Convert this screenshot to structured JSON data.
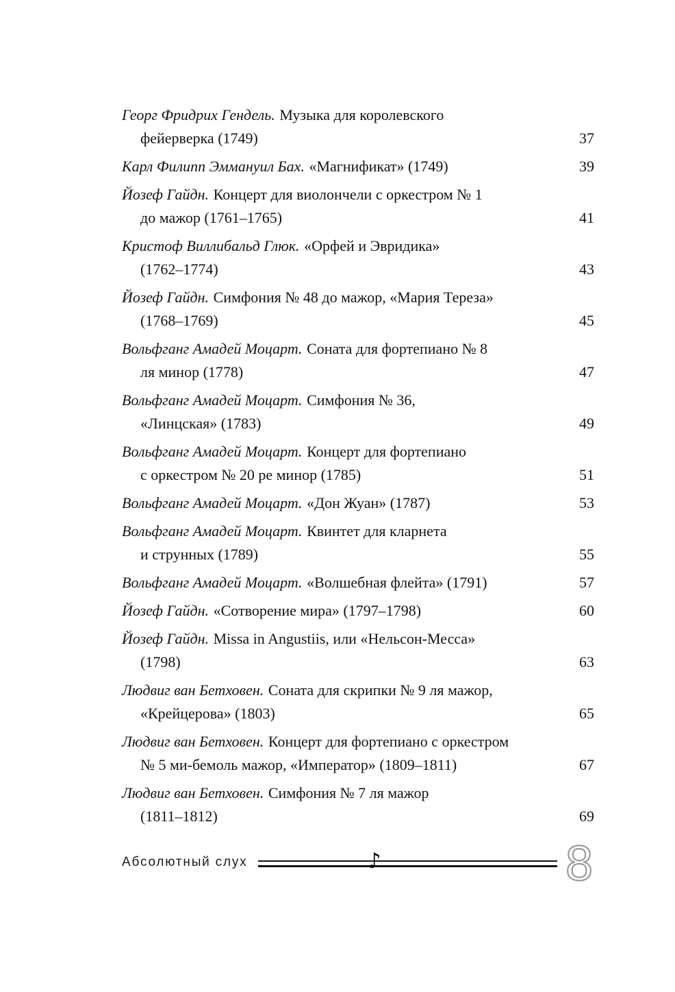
{
  "toc": {
    "entries": [
      {
        "author": "Георг Фридрих Гендель.",
        "title": "Музыка для королевского",
        "continuation": "фейерверка (1749)",
        "page": "37"
      },
      {
        "author": "Карл Филипп Эммануил Бах.",
        "title": "«Магнификат» (1749)",
        "continuation": "",
        "page": "39"
      },
      {
        "author": "Йозеф Гайдн.",
        "title": "Концерт для виолончели с оркестром № 1",
        "continuation": "до мажор (1761–1765)",
        "page": "41"
      },
      {
        "author": "Кристоф Виллибальд Глюк.",
        "title": "«Орфей и Эвридика»",
        "continuation": "(1762–1774)",
        "page": "43"
      },
      {
        "author": "Йозеф Гайдн.",
        "title": "Симфония № 48 до мажор, «Мария Тереза»",
        "continuation": "(1768–1769)",
        "page": "45"
      },
      {
        "author": "Вольфганг Амадей Моцарт.",
        "title": "Соната для фортепиано № 8",
        "continuation": "ля минор (1778)",
        "page": "47"
      },
      {
        "author": "Вольфганг Амадей Моцарт.",
        "title": "Симфония № 36,",
        "continuation": "«Линцская» (1783)",
        "page": "49"
      },
      {
        "author": "Вольфганг Амадей Моцарт.",
        "title": "Концерт для фортепиано",
        "continuation": "с оркестром № 20 ре минор (1785)",
        "page": "51"
      },
      {
        "author": "Вольфганг Амадей Моцарт.",
        "title": "«Дон Жуан» (1787)",
        "continuation": "",
        "page": "53"
      },
      {
        "author": "Вольфганг Амадей Моцарт.",
        "title": "Квинтет для кларнета",
        "continuation": "и струнных (1789)",
        "page": "55"
      },
      {
        "author": "Вольфганг Амадей Моцарт.",
        "title": "«Волшебная флейта» (1791)",
        "continuation": "",
        "page": "57"
      },
      {
        "author": "Йозеф Гайдн.",
        "title": "«Сотворение мира» (1797–1798)",
        "continuation": "",
        "page": "60"
      },
      {
        "author": "Йозеф Гайдн.",
        "title": "Missa in Angustiis, или «Нельсон-Месса»",
        "continuation": "(1798)",
        "page": "63"
      },
      {
        "author": "Людвиг ван Бетховен.",
        "title": "Соната для скрипки № 9 ля мажор,",
        "continuation": "«Крейцерова» (1803)",
        "page": "65"
      },
      {
        "author": "Людвиг ван Бетховен.",
        "title": "Концерт для фортепиано с оркестром",
        "continuation": "№ 5 ми-бемоль мажор, «Император» (1809–1811)",
        "page": "67"
      },
      {
        "author": "Людвиг ван Бетховен.",
        "title": "Симфония № 7 ля мажор",
        "continuation": "(1811–1812)",
        "page": "69"
      }
    ]
  },
  "footer": {
    "title": "Абсолютный слух",
    "eighth_note_icon": "♪",
    "page_number": "8",
    "page_number_color": "#9b9b9b"
  }
}
